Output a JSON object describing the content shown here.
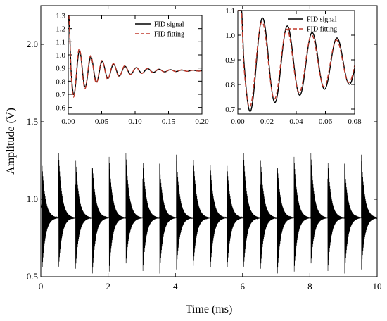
{
  "chart_data": [
    {
      "type": "line",
      "title": "",
      "xlabel": "Time (ms)",
      "ylabel": "Amplitude (V)",
      "xlim": [
        0,
        10
      ],
      "ylim": [
        0.5,
        2.25
      ],
      "xticks": [
        0,
        2,
        4,
        6,
        8,
        10
      ],
      "yticks": [
        0.5,
        1.0,
        1.5,
        2.0
      ],
      "ytick_labels": [
        "0.5",
        "1.0",
        "1.5",
        "2.0"
      ],
      "grid": false,
      "series": [
        {
          "signal": "periodic FID pulse train",
          "pulse_period_ms": 0.5,
          "pulse_count": 20,
          "baseline": 0.88,
          "pulse_peak": 1.3,
          "pulse_min": 0.5
        }
      ]
    },
    {
      "type": "line",
      "title": "",
      "xlim": [
        0,
        0.2
      ],
      "ylim": [
        0.55,
        1.3
      ],
      "xticks": [
        0.0,
        0.05,
        0.1,
        0.15,
        0.2
      ],
      "xtick_labels": [
        "0.00",
        "0.05",
        "0.10",
        "0.15",
        "0.20"
      ],
      "yticks": [
        0.6,
        0.7,
        0.8,
        0.9,
        1.0,
        1.1,
        1.2,
        1.3
      ],
      "ytick_labels": [
        "0.6",
        "0.7",
        "0.8",
        "0.9",
        "1.0",
        "1.1",
        "1.2",
        "1.3"
      ],
      "legend_position": "top-right",
      "series": [
        {
          "name": "FID signal",
          "color": "#000000",
          "style": "solid",
          "baseline": 0.88,
          "amplitude": 0.22,
          "period_ms": 0.017,
          "decay_ms": 0.045
        },
        {
          "name": "FID fitting",
          "color": "#c0392b",
          "style": "dashed",
          "baseline": 0.88,
          "amplitude": 0.24,
          "period_ms": 0.017,
          "decay_ms": 0.045
        }
      ]
    },
    {
      "type": "line",
      "title": "",
      "xlim": [
        0,
        0.08
      ],
      "ylim": [
        0.68,
        1.1
      ],
      "xticks": [
        0.0,
        0.02,
        0.04,
        0.06,
        0.08
      ],
      "xtick_labels": [
        "0.00",
        "0.02",
        "0.04",
        "0.06",
        "0.08"
      ],
      "yticks": [
        0.7,
        0.8,
        0.9,
        1.0,
        1.1
      ],
      "ytick_labels": [
        "0.7",
        "0.8",
        "0.9",
        "1.0",
        "1.1"
      ],
      "legend_position": "top-right",
      "series": [
        {
          "name": "FID signal",
          "color": "#000000",
          "style": "solid",
          "baseline": 0.89,
          "amplitude": 0.22,
          "period_ms": 0.017,
          "decay_ms": 0.085
        },
        {
          "name": "FID fitting",
          "color": "#c0392b",
          "style": "dashed",
          "baseline": 0.89,
          "amplitude": 0.2,
          "period_ms": 0.017,
          "decay_ms": 0.085
        }
      ]
    }
  ]
}
